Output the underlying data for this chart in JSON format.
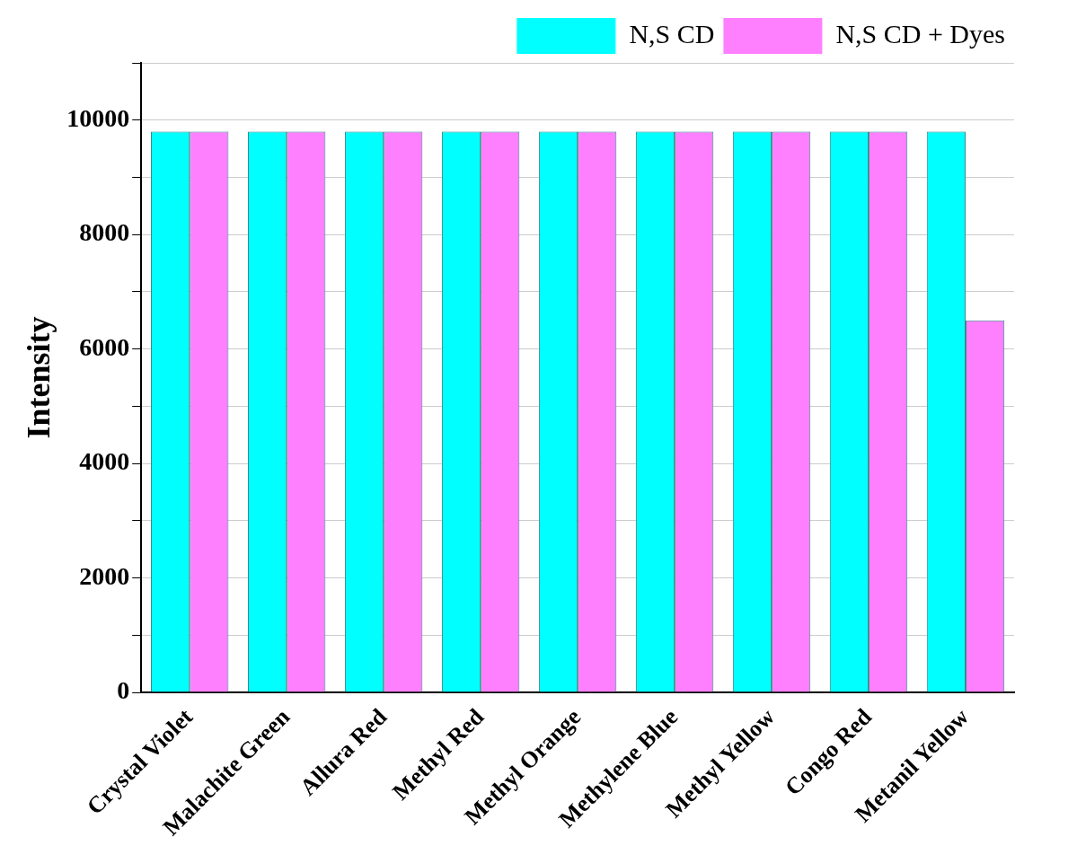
{
  "chart_data": {
    "type": "bar",
    "ylabel": "Intensity",
    "categories": [
      "Crystal Violet",
      "Malachite Green",
      "Allura Red",
      "Methyl Red",
      "Methyl Orange",
      "Methylene Blue",
      "Methyl Yellow",
      "Congo Red",
      "Metanil Yellow"
    ],
    "series": [
      {
        "name": "N,S CD",
        "color": "#00ffff",
        "values": [
          9800,
          9800,
          9800,
          9800,
          9800,
          9800,
          9800,
          9800,
          9800
        ]
      },
      {
        "name": "N,S CD + Dyes",
        "color": "#ff80ff",
        "values": [
          9800,
          9800,
          9800,
          9800,
          9800,
          9800,
          9800,
          9800,
          6500
        ]
      }
    ],
    "ylim": [
      0,
      11000
    ],
    "yticks": [
      0,
      {
        "value": 1000,
        "label": null
      },
      2000,
      {
        "value": 3000,
        "label": null
      },
      4000,
      {
        "value": 5000,
        "label": null
      },
      6000,
      {
        "value": 7000,
        "label": null
      },
      8000,
      {
        "value": 9000,
        "label": null
      },
      10000,
      {
        "value": 11000,
        "label": null
      }
    ],
    "grid": "y",
    "legend": "top right"
  }
}
